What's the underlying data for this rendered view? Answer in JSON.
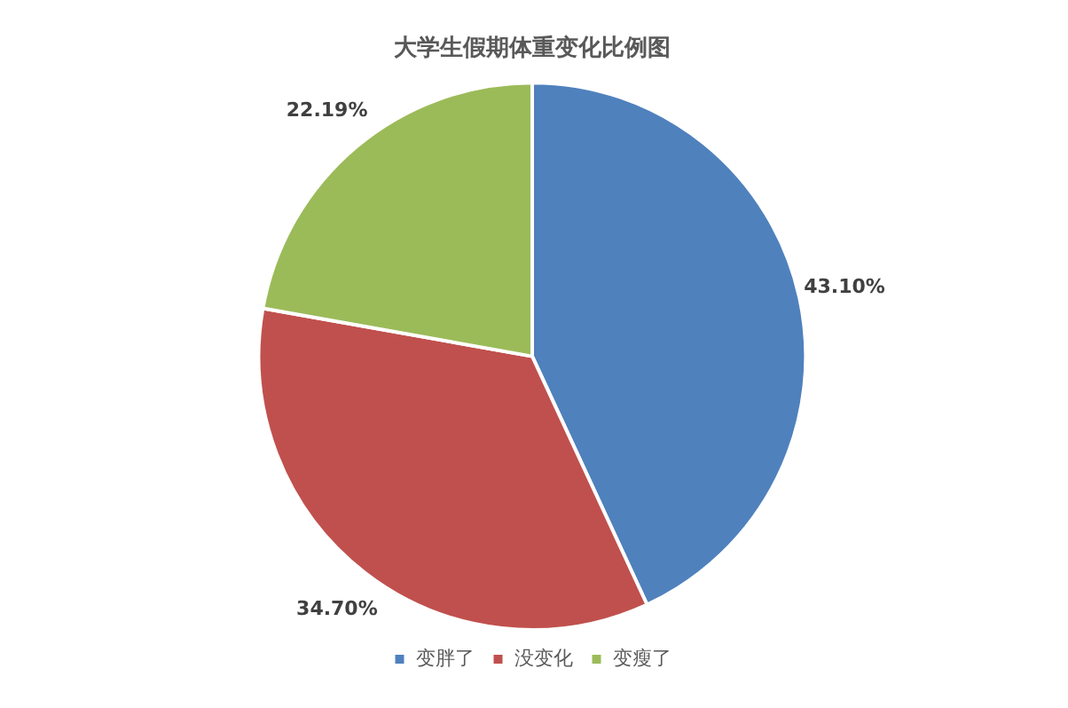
{
  "chart_data": {
    "type": "pie",
    "title": "大学生假期体重变化比例图",
    "categories": [
      "变胖了",
      "没变化",
      "变瘦了"
    ],
    "values": [
      43.1,
      34.7,
      22.19
    ],
    "colors": [
      "#4f81bd",
      "#c0504d",
      "#9bbb59"
    ],
    "value_labels": [
      "43.10%",
      "34.70%",
      "22.19%"
    ],
    "legend": "bottom"
  }
}
